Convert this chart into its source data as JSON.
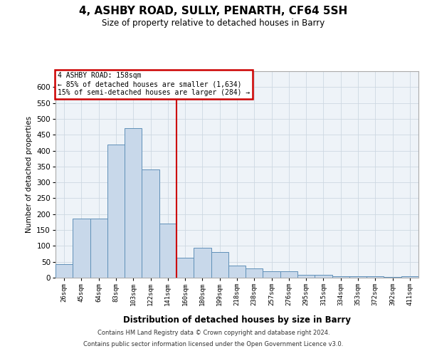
{
  "title1": "4, ASHBY ROAD, SULLY, PENARTH, CF64 5SH",
  "title2": "Size of property relative to detached houses in Barry",
  "xlabel": "Distribution of detached houses by size in Barry",
  "ylabel": "Number of detached properties",
  "categories": [
    "26sqm",
    "45sqm",
    "64sqm",
    "83sqm",
    "103sqm",
    "122sqm",
    "141sqm",
    "160sqm",
    "180sqm",
    "199sqm",
    "218sqm",
    "238sqm",
    "257sqm",
    "276sqm",
    "295sqm",
    "315sqm",
    "334sqm",
    "353sqm",
    "372sqm",
    "392sqm",
    "411sqm"
  ],
  "values": [
    42,
    185,
    185,
    420,
    470,
    340,
    170,
    62,
    95,
    80,
    38,
    30,
    20,
    20,
    8,
    8,
    5,
    5,
    5,
    2,
    5
  ],
  "bar_color": "#c8d8ea",
  "bar_edge_color": "#6090b8",
  "vline_index": 7,
  "vline_color": "#cc0000",
  "annotation_line1": "4 ASHBY ROAD: 158sqm",
  "annotation_line2": "← 85% of detached houses are smaller (1,634)",
  "annotation_line3": "15% of semi-detached houses are larger (284) →",
  "annotation_box_facecolor": "#ffffff",
  "annotation_box_edgecolor": "#cc0000",
  "ylim_max": 650,
  "yticks": [
    0,
    50,
    100,
    150,
    200,
    250,
    300,
    350,
    400,
    450,
    500,
    550,
    600
  ],
  "footer1": "Contains HM Land Registry data © Crown copyright and database right 2024.",
  "footer2": "Contains public sector information licensed under the Open Government Licence v3.0.",
  "bg_color": "#ffffff",
  "plot_bg_color": "#eef3f8",
  "grid_color": "#cdd8e2"
}
